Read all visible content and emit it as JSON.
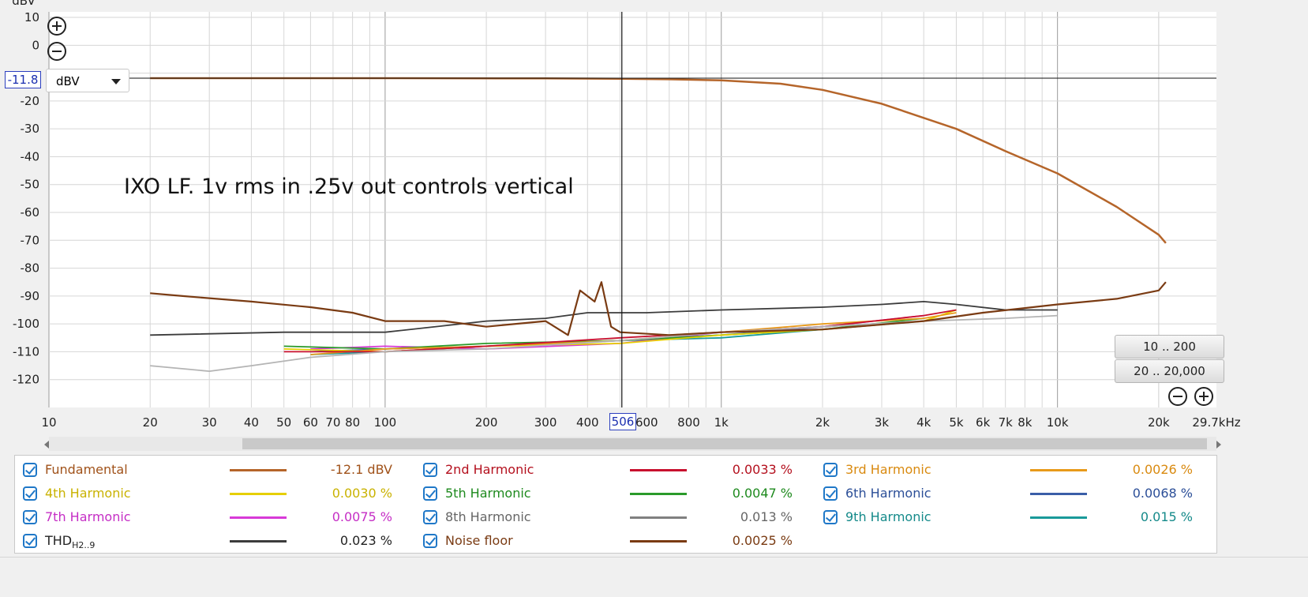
{
  "chart_data": {
    "type": "line",
    "title": "",
    "annotation": "IXO LF. 1v rms in .25v out controls vertical",
    "ylabel": "dBV",
    "xlabel": "",
    "xscale": "log",
    "xlim": [
      10,
      29700
    ],
    "ylim": [
      -130,
      12
    ],
    "grid": true,
    "legend_position": "bottom",
    "y_ticks": [
      "10",
      "0",
      "-20",
      "-30",
      "-40",
      "-50",
      "-60",
      "-70",
      "-80",
      "-90",
      "-100",
      "-110",
      "-120"
    ],
    "x_tick_labels": [
      "10",
      "20",
      "30",
      "40",
      "50",
      "60",
      "70",
      "80",
      "100",
      "200",
      "300",
      "400",
      "600",
      "800",
      "1k",
      "2k",
      "3k",
      "4k",
      "5k",
      "6k",
      "7k",
      "8k",
      "10k",
      "20k",
      "29.7kHz"
    ],
    "cursor": {
      "y_label": "-11.8",
      "x_label": "506"
    },
    "series": [
      {
        "name": "Fundamental",
        "color": "#b5652a",
        "x": [
          20,
          100,
          300,
          506,
          700,
          1000,
          1500,
          2000,
          3000,
          5000,
          7000,
          10000,
          15000,
          20000,
          21000
        ],
        "y": [
          -11.8,
          -11.8,
          -11.9,
          -12.0,
          -12.2,
          -12.6,
          -13.8,
          -16.0,
          -21.0,
          -30.0,
          -38.0,
          -46.0,
          -58.0,
          -68.0,
          -71.0
        ]
      },
      {
        "name": "Noise floor",
        "color": "#7a3b13",
        "x": [
          20,
          25,
          40,
          60,
          80,
          100,
          150,
          200,
          300,
          350,
          380,
          420,
          440,
          470,
          500,
          700,
          1000,
          2000,
          4000,
          6000,
          10000,
          15000,
          20000,
          21000
        ],
        "y": [
          -89,
          -90,
          -92,
          -94,
          -96,
          -99,
          -99,
          -101,
          -99,
          -104,
          -88,
          -92,
          -85,
          -101,
          -103,
          -104,
          -103,
          -102,
          -99,
          -96,
          -93,
          -91,
          -88,
          -85
        ]
      },
      {
        "name": "THD",
        "color": "#3c3c3c",
        "x": [
          20,
          50,
          100,
          200,
          300,
          400,
          600,
          1000,
          2000,
          3000,
          4000,
          5000,
          7000,
          10000
        ],
        "y": [
          -104,
          -103,
          -103,
          -99,
          -98,
          -96,
          -96,
          -95,
          -94,
          -93,
          -92,
          -93,
          -95,
          -95
        ]
      },
      {
        "name": "8th Harmonic",
        "color": "#b4b4b4",
        "x": [
          20,
          30,
          40,
          60,
          100,
          200,
          500,
          1000,
          2000,
          4000,
          7000,
          10000
        ],
        "y": [
          -115,
          -117,
          -115,
          -112,
          -110,
          -109,
          -106,
          -103,
          -101,
          -99,
          -98,
          -97
        ]
      },
      {
        "name": "2nd Harmonic",
        "color": "#c8102e",
        "x": [
          50,
          100,
          200,
          500,
          1000,
          2000,
          4000,
          5000
        ],
        "y": [
          -110,
          -110,
          -108,
          -105,
          -103,
          -101,
          -97,
          -95
        ]
      },
      {
        "name": "3rd Harmonic",
        "color": "#e89a1a",
        "x": [
          60,
          100,
          200,
          500,
          1000,
          2000,
          4000,
          5000
        ],
        "y": [
          -111,
          -109,
          -108,
          -106,
          -103,
          -100,
          -98,
          -96
        ]
      },
      {
        "name": "4th Harmonic",
        "color": "#e6cf00",
        "x": [
          50,
          100,
          200,
          500,
          1000,
          2000,
          4000,
          5000
        ],
        "y": [
          -109,
          -110,
          -108,
          -107,
          -104,
          -102,
          -99,
          -95
        ]
      },
      {
        "name": "5th Harmonic",
        "color": "#2a9a2a",
        "x": [
          50,
          100,
          200,
          500,
          1000,
          2000,
          4000
        ],
        "y": [
          -108,
          -109,
          -107,
          -106,
          -104,
          -102,
          -98
        ]
      },
      {
        "name": "6th Harmonic",
        "color": "#3a5ea8",
        "x": [
          60,
          100,
          200,
          500,
          1000,
          2000,
          4000
        ],
        "y": [
          -110,
          -109,
          -108,
          -106,
          -104,
          -101,
          -99
        ]
      },
      {
        "name": "7th Harmonic",
        "color": "#d83ad8",
        "x": [
          60,
          100,
          200,
          500,
          1000,
          2000,
          4000
        ],
        "y": [
          -109,
          -108,
          -109,
          -107,
          -103,
          -101,
          -97
        ]
      },
      {
        "name": "9th Harmonic",
        "color": "#1a9a9a",
        "x": [
          60,
          100,
          200,
          500,
          1000,
          2000,
          4000
        ],
        "y": [
          -111,
          -110,
          -108,
          -106,
          -105,
          -102,
          -99
        ]
      }
    ]
  },
  "controls": {
    "unit_label": "dBV",
    "range_low": "10 .. 200",
    "range_high": "20 .. 20,000"
  },
  "legend": [
    {
      "name": "Fundamental",
      "value": "-12.1 dBV",
      "color": "#b5652a",
      "checked": true
    },
    {
      "name": "2nd Harmonic",
      "value": "0.0033 %",
      "color": "#c8102e",
      "checked": true
    },
    {
      "name": "3rd Harmonic",
      "value": "0.0026 %",
      "color": "#e89a1a",
      "checked": true
    },
    {
      "name": "4th Harmonic",
      "value": "0.0030 %",
      "color": "#e6cf00",
      "checked": true
    },
    {
      "name": "5th Harmonic",
      "value": "0.0047 %",
      "color": "#2a9a2a",
      "checked": true
    },
    {
      "name": "6th Harmonic",
      "value": "0.0068 %",
      "color": "#3a5ea8",
      "checked": true
    },
    {
      "name": "7th Harmonic",
      "value": "0.0075 %",
      "color": "#d83ad8",
      "checked": true
    },
    {
      "name": "8th Harmonic",
      "value": "0.013 %",
      "color": "#808080",
      "checked": true
    },
    {
      "name": "9th Harmonic",
      "value": "0.015 %",
      "color": "#1a9a9a",
      "checked": true
    },
    {
      "name": "THD",
      "subscript": "H2..9",
      "value": "0.023 %",
      "color": "#3c3c3c",
      "checked": true
    },
    {
      "name": "Noise floor",
      "value": "0.0025 %",
      "color": "#7a3b13",
      "checked": true
    }
  ],
  "legend_text_colors": {
    "Fundamental": "#a0521a",
    "2nd Harmonic": "#b4101e",
    "3rd Harmonic": "#d98a10",
    "4th Harmonic": "#c9b200",
    "5th Harmonic": "#1e8a1e",
    "6th Harmonic": "#2c4f98",
    "7th Harmonic": "#c52ec5",
    "8th Harmonic": "#666666",
    "9th Harmonic": "#158a8a",
    "THD": "#222222",
    "Noise floor": "#7a3b13"
  }
}
